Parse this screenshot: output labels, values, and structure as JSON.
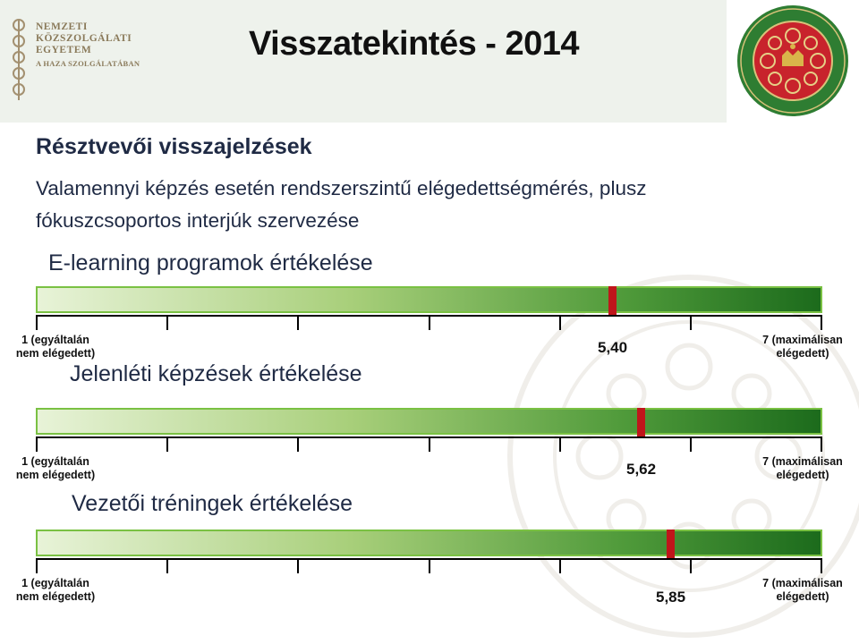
{
  "header": {
    "logo_line1": "NEMZETI",
    "logo_line2": "KÖZSZOLGÁLATI",
    "logo_line3": "EGYETEM",
    "logo_tagline": "A HAZA SZOLGÁLATÁBAN",
    "title": "Visszatekintés - 2014"
  },
  "content": {
    "subheading": "Résztvevői visszajelzések",
    "line1": "Valamennyi képzés esetén rendszerszintű elégedettségmérés, plusz",
    "line2": "fókuszcsoportos interjúk szervezése"
  },
  "scale": {
    "min": 1,
    "max": 7,
    "min_label_1": "1 (egyáltalán",
    "min_label_2": "nem elégedett)",
    "max_label_1": "7 (maximálisan",
    "max_label_2": "elégedett)"
  },
  "ratings": [
    {
      "title": "E-learning programok értékelése",
      "value": 5.4,
      "value_label": "5,40"
    },
    {
      "title": "Jelenléti képzések értékelése",
      "value": 5.62,
      "value_label": "5,62"
    },
    {
      "title": "Vezetői tréningek értékelése",
      "value": 5.85,
      "value_label": "5,85"
    }
  ],
  "colors": {
    "marker": "#c0161b",
    "bar_border": "#7ac143",
    "bar_dark": "#1c6b1c"
  }
}
